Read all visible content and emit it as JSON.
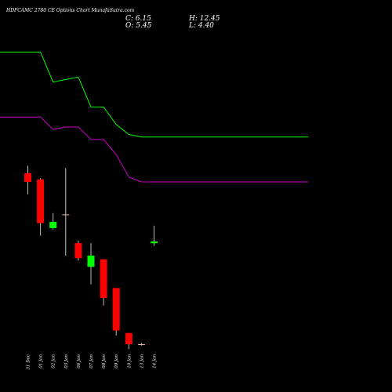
{
  "header": {
    "title": "HDFCAMC 2780  CE Options  Chart MunafaSutra.com",
    "close_text": "C: 6.15",
    "open_text": "O: 5.45",
    "high_text": "H: 12.45",
    "low_text": "L: 4.40"
  },
  "colors": {
    "background": "#000000",
    "up": "#00ff00",
    "down": "#ff0000",
    "upper_line": "#00ff00",
    "lower_line": "#cc00cc",
    "text": "#ffffff"
  },
  "chart_data": {
    "type": "candlestick",
    "categories": [
      "31 Dec",
      "01 Jan",
      "02 Jan",
      "03 Jan",
      "06 Jan",
      "07 Jan",
      "08 Jan",
      "09 Jan",
      "10 Jan",
      "13 Jan",
      "14 Jan"
    ],
    "candles": [
      {
        "open": 33.5,
        "high": 36.5,
        "low": 25.0,
        "close": 30.0
      },
      {
        "open": 31.0,
        "high": 31.5,
        "low": 8.5,
        "close": 13.5
      },
      {
        "open": 11.5,
        "high": 17.5,
        "low": 11.0,
        "close": 14.0
      },
      {
        "open": 17.0,
        "high": 35.5,
        "low": 0.5,
        "close": 17.0
      },
      {
        "open": 5.5,
        "high": 6.5,
        "low": -1.5,
        "close": -0.5
      },
      {
        "open": -4.0,
        "high": 5.5,
        "low": -11.0,
        "close": 0.5
      },
      {
        "open": -1.0,
        "high": -1.0,
        "low": -19.5,
        "close": -16.5
      },
      {
        "open": -12.5,
        "high": -12.5,
        "low": -31.5,
        "close": -29.5
      },
      {
        "open": -30.5,
        "high": -30.5,
        "low": -37.0,
        "close": -35.0
      },
      {
        "open": -35.0,
        "high": -34.5,
        "low": -35.5,
        "close": -35.0
      },
      {
        "open": 5.45,
        "high": 12.45,
        "low": 4.4,
        "close": 6.15
      }
    ],
    "upper_band": [
      82,
      82,
      70,
      71,
      72,
      60,
      60,
      53,
      49,
      48,
      48
    ],
    "lower_band": [
      56,
      56,
      51,
      52,
      52,
      47,
      47,
      41,
      32,
      30,
      30
    ],
    "ylim": [
      -40,
      95
    ],
    "grid": false,
    "legend": "none"
  }
}
